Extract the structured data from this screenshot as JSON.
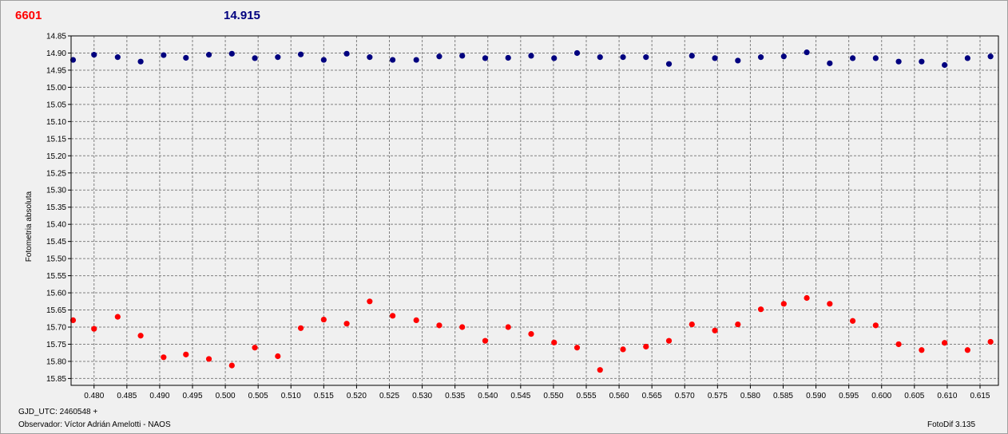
{
  "header": {
    "label_red": "6601",
    "label_blue": "14.915"
  },
  "footer": {
    "gjd": "GJD_UTC: 2460548 +",
    "observer": "Observador: Víctor Adrián Amelotti - NAOS",
    "version": "FotoDif 3.135"
  },
  "colors": {
    "series_target": "#ff0000",
    "series_comparison": "#00007f",
    "grid": "#808080",
    "plot_background": "#f0f0f0"
  },
  "chart_data": {
    "type": "scatter",
    "ylabel": "Fotometria absoluta",
    "xlabel": "",
    "xlim": [
      0.4765,
      0.6178
    ],
    "ylim": [
      14.85,
      15.87
    ],
    "y_inverted": true,
    "grid": true,
    "x_ticks": [
      "0.480",
      "0.485",
      "0.490",
      "0.495",
      "0.500",
      "0.505",
      "0.510",
      "0.515",
      "0.520",
      "0.525",
      "0.530",
      "0.535",
      "0.540",
      "0.545",
      "0.550",
      "0.555",
      "0.560",
      "0.565",
      "0.570",
      "0.575",
      "0.580",
      "0.585",
      "0.590",
      "0.595",
      "0.600",
      "0.605",
      "0.610",
      "0.615"
    ],
    "y_ticks": [
      "14.85",
      "14.90",
      "14.95",
      "15.00",
      "15.05",
      "15.10",
      "15.15",
      "15.20",
      "15.25",
      "15.30",
      "15.35",
      "15.40",
      "15.45",
      "15.50",
      "15.55",
      "15.60",
      "15.65",
      "15.70",
      "15.75",
      "15.80",
      "15.85"
    ],
    "series": [
      {
        "key": "comparison",
        "x": [
          0.4768,
          0.48,
          0.4836,
          0.4871,
          0.4906,
          0.494,
          0.4975,
          0.501,
          0.5045,
          0.508,
          0.5115,
          0.515,
          0.5185,
          0.522,
          0.5255,
          0.5291,
          0.5326,
          0.5361,
          0.5396,
          0.5431,
          0.5466,
          0.5501,
          0.5536,
          0.5571,
          0.5606,
          0.5641,
          0.5676,
          0.5711,
          0.5746,
          0.5781,
          0.5816,
          0.5851,
          0.5886,
          0.5921,
          0.5956,
          0.5991,
          0.6026,
          0.6061,
          0.6096,
          0.6131,
          0.6166
        ],
        "y": [
          14.92,
          14.905,
          14.912,
          14.925,
          14.906,
          14.914,
          14.905,
          14.902,
          14.915,
          14.912,
          14.904,
          14.92,
          14.902,
          14.912,
          14.92,
          14.92,
          14.91,
          14.908,
          14.915,
          14.914,
          14.908,
          14.915,
          14.9,
          14.912,
          14.912,
          14.912,
          14.932,
          14.908,
          14.915,
          14.922,
          14.912,
          14.91,
          14.898,
          14.93,
          14.915,
          14.915,
          14.925,
          14.925,
          14.935,
          14.915,
          14.91
        ]
      },
      {
        "key": "target",
        "x": [
          0.4768,
          0.48,
          0.4836,
          0.4871,
          0.4906,
          0.494,
          0.4975,
          0.501,
          0.5045,
          0.508,
          0.5115,
          0.515,
          0.5185,
          0.522,
          0.5255,
          0.5291,
          0.5326,
          0.5361,
          0.5396,
          0.5431,
          0.5466,
          0.5501,
          0.5536,
          0.5571,
          0.5606,
          0.5641,
          0.5676,
          0.5711,
          0.5746,
          0.5781,
          0.5816,
          0.5851,
          0.5886,
          0.5921,
          0.5956,
          0.5991,
          0.6026,
          0.6061,
          0.6096,
          0.6131,
          0.6166
        ],
        "y": [
          15.68,
          15.705,
          15.67,
          15.725,
          15.788,
          15.78,
          15.793,
          15.812,
          15.76,
          15.785,
          15.703,
          15.678,
          15.69,
          15.625,
          15.667,
          15.68,
          15.695,
          15.7,
          15.74,
          15.7,
          15.72,
          15.745,
          15.76,
          15.825,
          15.765,
          15.757,
          15.74,
          15.692,
          15.71,
          15.692,
          15.648,
          15.632,
          15.615,
          15.632,
          15.682,
          15.695,
          15.75,
          15.767,
          15.746,
          15.767,
          15.743
        ]
      }
    ]
  }
}
